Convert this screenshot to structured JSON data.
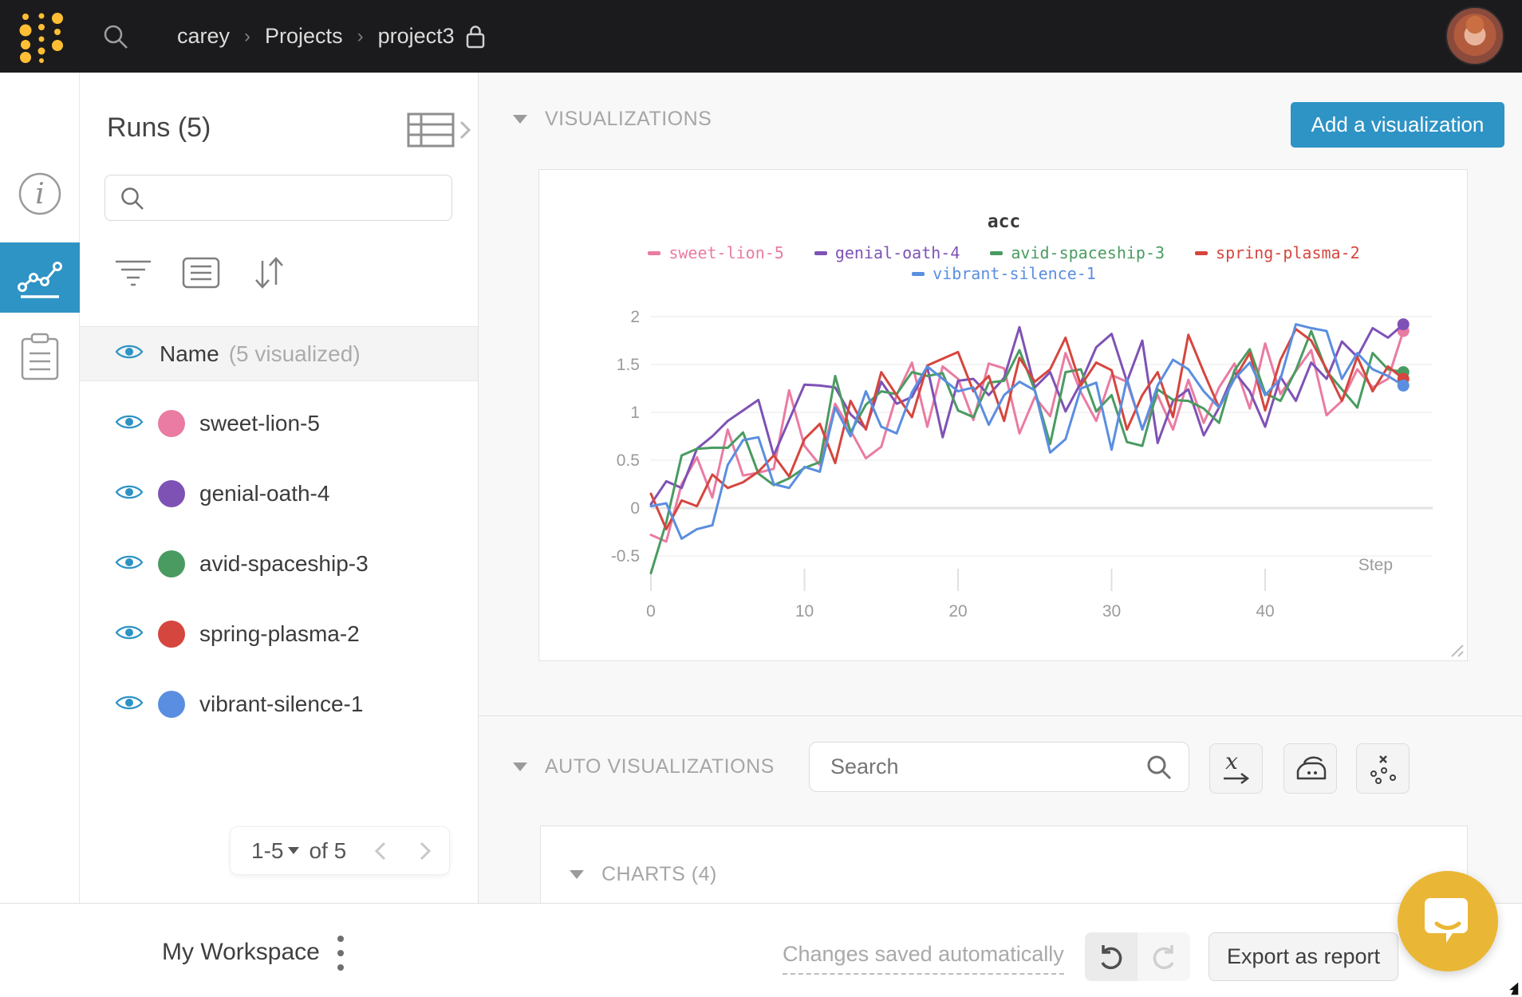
{
  "nav": {
    "user": "carey",
    "section": "Projects",
    "project": "project3"
  },
  "runs_panel": {
    "title": "Runs (5)",
    "search_value": "",
    "name_header": "Name",
    "name_note": "(5 visualized)",
    "runs": [
      {
        "name": "sweet-lion-5",
        "color": "#ea7ba2"
      },
      {
        "name": "genial-oath-4",
        "color": "#7e52b5"
      },
      {
        "name": "avid-spaceship-3",
        "color": "#4a9b61"
      },
      {
        "name": "spring-plasma-2",
        "color": "#d5463e"
      },
      {
        "name": "vibrant-silence-1",
        "color": "#5a8ee0"
      }
    ],
    "pagination": {
      "range": "1-5",
      "of_label": "of 5"
    }
  },
  "viz_section": {
    "header": "VISUALIZATIONS",
    "add_button": "Add a visualization"
  },
  "auto_viz": {
    "header": "AUTO VISUALIZATIONS",
    "search_placeholder": "Search",
    "charts_header": "CHARTS (4)"
  },
  "footer": {
    "workspace": "My Workspace",
    "autosave": "Changes saved automatically",
    "export_button": "Export as report"
  },
  "colors": {
    "accent_blue": "#2e93c5",
    "brand_gold": "#ffbe33",
    "navbar_bg": "#1b1b1d"
  },
  "chart_data": {
    "type": "line",
    "title": "acc",
    "xlabel": "Step",
    "x_start": 0,
    "x_step": 1,
    "x_ticks": [
      0,
      10,
      20,
      30,
      40
    ],
    "y_ticks": [
      2,
      1.5,
      1,
      0.5,
      0,
      -0.5
    ],
    "xlim": [
      0,
      50
    ],
    "ylim": [
      -0.75,
      2.05
    ],
    "grid": true,
    "legend_position": "top",
    "series": [
      {
        "name": "sweet-lion-5",
        "color": "#ea7ba2",
        "values": [
          -0.28,
          -0.35,
          0.25,
          0.53,
          0.11,
          0.82,
          0.34,
          0.37,
          0.41,
          1.23,
          0.65,
          0.45,
          1.09,
          0.81,
          0.52,
          0.64,
          1.18,
          1.52,
          0.85,
          1.48,
          1.35,
          0.92,
          1.51,
          1.46,
          0.78,
          1.16,
          0.96,
          1.62,
          1.21,
          0.91,
          1.39,
          1.32,
          0.83,
          1.18,
          0.82,
          1.34,
          0.89,
          1.26,
          1.51,
          1.04,
          1.72,
          1.19,
          1.43,
          1.65,
          0.97,
          1.12,
          1.45,
          1.26,
          1.35,
          1.85
        ]
      },
      {
        "name": "genial-oath-4",
        "color": "#7e52b5",
        "values": [
          0.04,
          0.28,
          0.21,
          0.62,
          0.75,
          0.91,
          1.02,
          1.13,
          0.55,
          0.92,
          1.29,
          1.28,
          1.26,
          0.98,
          0.83,
          1.32,
          1.09,
          1.16,
          1.47,
          0.74,
          1.33,
          1.35,
          1.18,
          1.36,
          1.89,
          1.26,
          1.42,
          1.01,
          1.31,
          1.68,
          1.82,
          1.32,
          1.75,
          0.68,
          1.12,
          1.24,
          0.76,
          1.05,
          1.42,
          1.22,
          0.85,
          1.37,
          1.12,
          1.52,
          1.35,
          1.74,
          1.58,
          1.88,
          1.78,
          1.92
        ]
      },
      {
        "name": "avid-spaceship-3",
        "color": "#4a9b61",
        "values": [
          -0.68,
          -0.15,
          0.55,
          0.62,
          0.63,
          0.63,
          0.79,
          0.36,
          0.24,
          0.31,
          0.42,
          0.48,
          1.38,
          0.79,
          1.08,
          1.22,
          1.19,
          1.42,
          1.38,
          1.41,
          1.02,
          0.95,
          1.31,
          1.33,
          1.65,
          1.23,
          0.67,
          1.42,
          1.45,
          1.01,
          1.18,
          0.69,
          0.65,
          1.24,
          1.13,
          1.12,
          1.04,
          0.89,
          1.44,
          1.66,
          1.2,
          1.12,
          1.44,
          1.85,
          1.43,
          1.24,
          1.05,
          1.62,
          1.45,
          1.42
        ]
      },
      {
        "name": "spring-plasma-2",
        "color": "#d5463e",
        "values": [
          0.15,
          -0.22,
          0.08,
          0.02,
          0.35,
          0.21,
          0.27,
          0.38,
          0.55,
          0.33,
          0.72,
          0.88,
          0.47,
          1.12,
          0.82,
          1.42,
          1.18,
          0.95,
          1.49,
          1.56,
          1.63,
          1.22,
          1.38,
          0.91,
          1.57,
          1.32,
          1.45,
          1.78,
          1.28,
          1.52,
          1.44,
          0.82,
          1.18,
          1.42,
          0.95,
          1.81,
          1.42,
          1.05,
          1.35,
          1.62,
          1.02,
          1.55,
          1.87,
          1.75,
          1.45,
          1.12,
          1.58,
          1.22,
          1.48,
          1.35
        ]
      },
      {
        "name": "vibrant-silence-1",
        "color": "#5a8ee0",
        "values": [
          0.02,
          0.05,
          -0.32,
          -0.22,
          -0.18,
          0.45,
          0.71,
          0.74,
          0.25,
          0.21,
          0.43,
          0.38,
          1.05,
          0.75,
          1.22,
          0.85,
          0.78,
          1.21,
          1.48,
          1.35,
          1.22,
          1.26,
          0.87,
          1.18,
          1.32,
          1.23,
          0.58,
          0.72,
          1.25,
          1.31,
          0.61,
          1.35,
          0.82,
          1.28,
          1.55,
          1.45,
          1.22,
          1.05,
          1.35,
          1.52,
          1.18,
          1.35,
          1.92,
          1.88,
          1.85,
          1.35,
          1.62,
          1.45,
          1.38,
          1.28
        ]
      }
    ]
  }
}
